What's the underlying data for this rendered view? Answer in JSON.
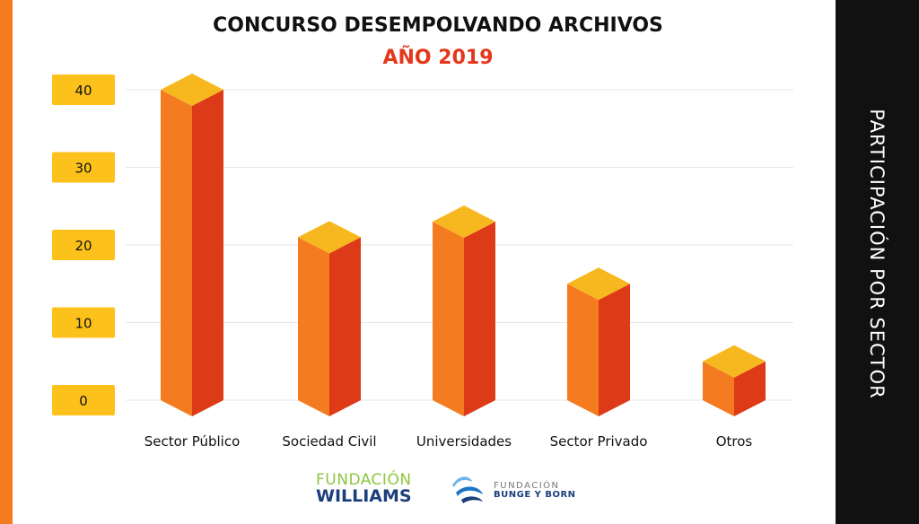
{
  "header": {
    "title": "CONCURSO DESEMPOLVANDO ARCHIVOS",
    "subtitle": "AÑO 2019"
  },
  "side_panel": {
    "title": "PARTICIPACIÓN POR SECTOR"
  },
  "logos": {
    "williams": {
      "line1": "FUNDACIÓN",
      "line2": "WILLIAMS"
    },
    "bunge_born": {
      "line1": "FUNDACIÓN",
      "line2": "BUNGE Y BORN"
    }
  },
  "colors": {
    "accent_orange": "#f47b20",
    "bar_front": "#f47b20",
    "bar_side": "#dd3a18",
    "bar_top": "#f7b81f",
    "tick_badge": "#fcc21b",
    "subtitle_red": "#e5371b",
    "gridline": "#e6e6e6",
    "side_panel": "#111111",
    "williams_green": "#8dc63f",
    "williams_blue": "#1b3e7c"
  },
  "chart_data": {
    "type": "bar",
    "title": "CONCURSO DESEMPOLVANDO ARCHIVOS",
    "subtitle": "AÑO 2019",
    "categories": [
      "Sector Público",
      "Sociedad Civil",
      "Universidades",
      "Sector Privado",
      "Otros"
    ],
    "values": [
      40,
      21,
      23,
      15,
      5
    ],
    "ylim": [
      0,
      40
    ],
    "yticks": [
      0,
      10,
      20,
      30,
      40
    ],
    "xlabel": "",
    "ylabel": "",
    "grid": true,
    "legend": "none"
  }
}
